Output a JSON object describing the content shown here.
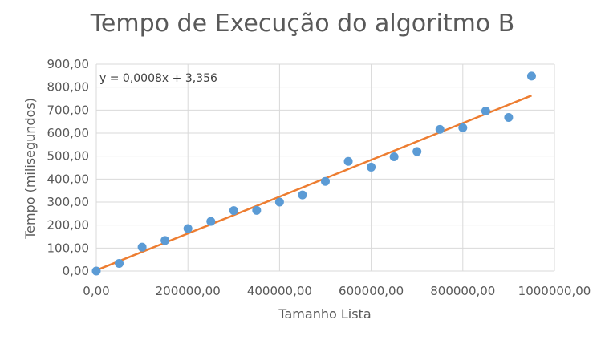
{
  "chart_data": {
    "type": "scatter",
    "title": "Tempo de Execução do algoritmo B",
    "xlabel": "Tamanho Lista",
    "ylabel": "Tempo (milisegundos)",
    "xlim": [
      0,
      1000000
    ],
    "ylim": [
      0,
      900
    ],
    "x_ticks": [
      "0,00",
      "200000,00",
      "400000,00",
      "600000,00",
      "800000,00",
      "1000000,00"
    ],
    "y_ticks": [
      "0,00",
      "100,00",
      "200,00",
      "300,00",
      "400,00",
      "500,00",
      "600,00",
      "700,00",
      "800,00",
      "900,00"
    ],
    "grid": true,
    "series": [
      {
        "x": [
          0,
          50000,
          100000,
          150000,
          200000,
          250000,
          300000,
          350000,
          400000,
          450000,
          500000,
          550000,
          600000,
          650000,
          700000,
          750000,
          800000,
          850000,
          900000,
          950000
        ],
        "y": [
          0,
          33,
          104,
          133,
          185,
          216,
          263,
          264,
          300,
          331,
          390,
          477,
          452,
          497,
          520,
          616,
          623,
          696,
          668,
          848
        ],
        "color": "#5b9bd5"
      }
    ],
    "trendline": {
      "slope": 0.0008,
      "intercept": 3.356,
      "equation": "y = 0,0008x + 3,356",
      "color": "#ed7d31"
    }
  }
}
